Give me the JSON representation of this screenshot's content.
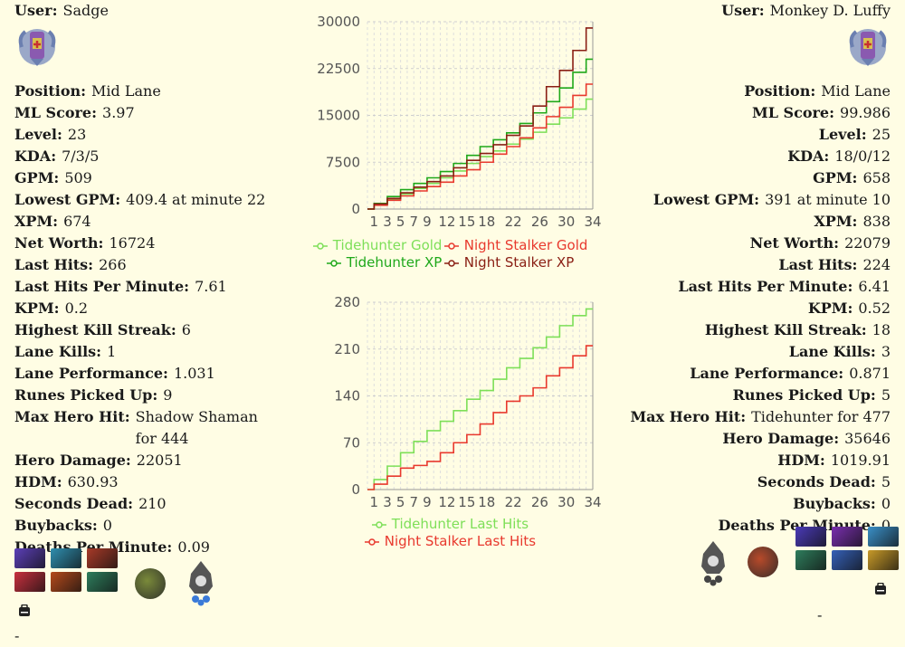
{
  "left": {
    "user_label": "User:",
    "user": "Sadge",
    "rank_icon": "rank-medal-icon",
    "stats": [
      {
        "k": "Position:",
        "v": "Mid Lane"
      },
      {
        "k": "ML Score:",
        "v": "3.97"
      },
      {
        "k": "Level:",
        "v": "23"
      },
      {
        "k": "KDA:",
        "v": "7/3/5"
      },
      {
        "k": "GPM:",
        "v": "509"
      },
      {
        "k": "Lowest GPM:",
        "v": "409.4 at minute 22"
      },
      {
        "k": "XPM:",
        "v": "674"
      },
      {
        "k": "Net Worth:",
        "v": "16724"
      },
      {
        "k": "Last Hits:",
        "v": "266"
      },
      {
        "k": "Last Hits Per Minute:",
        "v": "7.61"
      },
      {
        "k": "KPM:",
        "v": "0.2"
      },
      {
        "k": "Highest Kill Streak:",
        "v": "6"
      },
      {
        "k": "Lane Kills:",
        "v": "1"
      },
      {
        "k": "Lane Performance:",
        "v": "1.031"
      },
      {
        "k": "Runes Picked Up:",
        "v": "9"
      },
      {
        "k": "Max Hero Hit:",
        "v": "Shadow Shaman for 444"
      },
      {
        "k": "Hero Damage:",
        "v": "22051"
      },
      {
        "k": "HDM:",
        "v": "630.93"
      },
      {
        "k": "Seconds Dead:",
        "v": "210"
      },
      {
        "k": "Buybacks:",
        "v": "0"
      },
      {
        "k": "Deaths Per Minute:",
        "v": "0.09"
      }
    ],
    "items": [
      "#5b3fb8",
      "#2f8fb0",
      "#a83a28",
      "#c8303e",
      "#b54a1c",
      "#2e7d5c"
    ],
    "neutral_color": "#7a8a3a",
    "dash": "-"
  },
  "right": {
    "user_label": "User:",
    "user": "Monkey D. Luffy",
    "rank_icon": "rank-medal-icon",
    "stats": [
      {
        "k": "Position:",
        "v": "Mid Lane"
      },
      {
        "k": "ML Score:",
        "v": "99.986"
      },
      {
        "k": "Level:",
        "v": "25"
      },
      {
        "k": "KDA:",
        "v": "18/0/12"
      },
      {
        "k": "GPM:",
        "v": "658"
      },
      {
        "k": "Lowest GPM:",
        "v": "391 at minute 10"
      },
      {
        "k": "XPM:",
        "v": "838"
      },
      {
        "k": "Net Worth:",
        "v": "22079"
      },
      {
        "k": "Last Hits:",
        "v": "224"
      },
      {
        "k": "Last Hits Per Minute:",
        "v": "6.41"
      },
      {
        "k": "KPM:",
        "v": "0.52"
      },
      {
        "k": "Highest Kill Streak:",
        "v": "18"
      },
      {
        "k": "Lane Kills:",
        "v": "3"
      },
      {
        "k": "Lane Performance:",
        "v": "0.871"
      },
      {
        "k": "Runes Picked Up:",
        "v": "5"
      },
      {
        "k": "Max Hero Hit:",
        "v": "Tidehunter for 477"
      },
      {
        "k": "Hero Damage:",
        "v": "35646"
      },
      {
        "k": "HDM:",
        "v": "1019.91"
      },
      {
        "k": "Seconds Dead:",
        "v": "5"
      },
      {
        "k": "Buybacks:",
        "v": "0"
      },
      {
        "k": "Deaths Per Minute:",
        "v": "0"
      }
    ],
    "items": [
      "#4a3ab8",
      "#7a2fb0",
      "#3a90c8",
      "#2e7d5c",
      "#3560b8",
      "#c89a28"
    ],
    "neutral_color": "#b84a2a",
    "dash": "-"
  },
  "colors": {
    "tide_gold": "#7ddf58",
    "night_gold": "#e8392e",
    "tide_xp": "#1fa81a",
    "night_xp": "#8a1f14"
  },
  "chart_data": [
    {
      "type": "line",
      "x_ticks": [
        "1",
        "3",
        "5",
        "7",
        "9",
        "12",
        "15",
        "18",
        "22",
        "26",
        "30",
        "34"
      ],
      "ylim": [
        0,
        30000
      ],
      "y_ticks": [
        "0",
        "7500",
        "15000",
        "22500",
        "30000"
      ],
      "grid": true,
      "legend_position": "bottom",
      "series": [
        {
          "name": "Tidehunter Gold",
          "color_key": "tide_gold",
          "x": [
            0,
            2,
            4,
            6,
            8,
            10,
            12,
            14,
            16,
            18,
            20,
            22,
            24,
            26,
            28,
            30,
            32,
            34
          ],
          "values": [
            0,
            700,
            1600,
            2400,
            3300,
            4100,
            5000,
            6100,
            7300,
            8400,
            9300,
            10400,
            11200,
            12300,
            13600,
            14600,
            16000,
            17600
          ]
        },
        {
          "name": "Night Stalker Gold",
          "color_key": "night_gold",
          "x": [
            0,
            2,
            4,
            6,
            8,
            10,
            12,
            14,
            16,
            18,
            20,
            22,
            24,
            26,
            28,
            30,
            32,
            34
          ],
          "values": [
            0,
            600,
            1400,
            2100,
            2900,
            3600,
            4300,
            5300,
            6300,
            7500,
            8800,
            10000,
            11400,
            13000,
            14800,
            16300,
            18200,
            20000
          ]
        },
        {
          "name": "Tidehunter XP",
          "color_key": "tide_xp",
          "x": [
            0,
            2,
            4,
            6,
            8,
            10,
            12,
            14,
            16,
            18,
            20,
            22,
            24,
            26,
            28,
            30,
            32,
            34
          ],
          "values": [
            0,
            900,
            2000,
            3100,
            4100,
            5000,
            6000,
            7300,
            8600,
            10000,
            11100,
            12200,
            13700,
            15400,
            17200,
            19400,
            21900,
            24000
          ]
        },
        {
          "name": "Night Stalker XP",
          "color_key": "night_xp",
          "x": [
            0,
            2,
            4,
            6,
            8,
            10,
            12,
            14,
            16,
            18,
            20,
            22,
            24,
            26,
            28,
            30,
            32,
            34
          ],
          "values": [
            0,
            800,
            1700,
            2600,
            3500,
            4400,
            5300,
            6600,
            7800,
            8900,
            10300,
            11800,
            13300,
            16500,
            19600,
            22200,
            25400,
            29000
          ]
        }
      ]
    },
    {
      "type": "line",
      "x_ticks": [
        "1",
        "3",
        "5",
        "7",
        "9",
        "12",
        "15",
        "18",
        "22",
        "26",
        "30",
        "34"
      ],
      "ylim": [
        0,
        280
      ],
      "y_ticks": [
        "0",
        "70",
        "140",
        "210",
        "280"
      ],
      "grid": true,
      "legend_position": "bottom",
      "series": [
        {
          "name": "Tidehunter Last Hits",
          "color_key": "tide_gold",
          "x": [
            0,
            2,
            4,
            6,
            8,
            10,
            12,
            14,
            16,
            18,
            20,
            22,
            24,
            26,
            28,
            30,
            32,
            34
          ],
          "values": [
            0,
            15,
            35,
            55,
            72,
            88,
            102,
            118,
            135,
            148,
            165,
            182,
            196,
            212,
            228,
            245,
            260,
            270
          ]
        },
        {
          "name": "Night Stalker Last Hits",
          "color_key": "night_gold",
          "x": [
            0,
            2,
            4,
            6,
            8,
            10,
            12,
            14,
            16,
            18,
            20,
            22,
            24,
            26,
            28,
            30,
            32,
            34
          ],
          "values": [
            0,
            8,
            20,
            32,
            36,
            42,
            55,
            70,
            82,
            98,
            115,
            132,
            140,
            152,
            170,
            182,
            200,
            215
          ]
        }
      ]
    }
  ]
}
